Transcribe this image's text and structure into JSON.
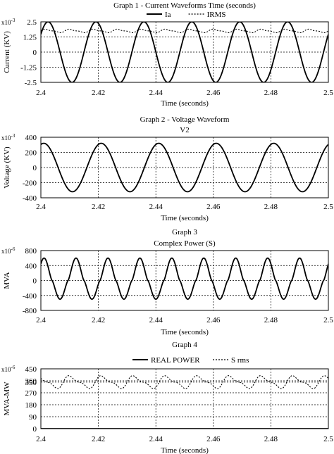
{
  "chart_data": [
    {
      "type": "line",
      "title": "Graph 1 - Current Waveforms Time (seconds)",
      "subtitle": "",
      "xlabel": "Time (seconds)",
      "ylabel": "Current (KV)",
      "multiplier": "x10",
      "multiplier_exp": "-3",
      "xlim": [
        2.4,
        2.5
      ],
      "ylim": [
        -2.5,
        2.5
      ],
      "xticks": [
        "2.4",
        "2.42",
        "2.44",
        "2.46",
        "2.48",
        "2.5"
      ],
      "yticks": [
        "2.5",
        "1.25",
        "0",
        "-1.25",
        "-2.5"
      ],
      "grid": true,
      "legend_position": "top",
      "series": [
        {
          "name": "Ia",
          "style": "solid",
          "wave": {
            "kind": "sine",
            "amplitude": 2.5,
            "offset": 0,
            "freq": 60,
            "phase": 0.1
          }
        },
        {
          "name": "IRMS",
          "style": "dotted",
          "wave": {
            "kind": "ripple",
            "amplitude": 0.12,
            "offset": 1.75,
            "freq": 120,
            "phase": 0
          }
        }
      ]
    },
    {
      "type": "line",
      "title": "Graph 2 - Voltage Waveform",
      "subtitle": "V2",
      "xlabel": "Time (seconds)",
      "ylabel": "Voltage (KV)",
      "multiplier": "x10",
      "multiplier_exp": "-3",
      "xlim": [
        2.4,
        2.5
      ],
      "ylim": [
        -400,
        400
      ],
      "xticks": [
        "2.4",
        "2.42",
        "2.44",
        "2.46",
        "2.48",
        "2.5"
      ],
      "yticks": [
        "400",
        "200",
        "0",
        "-200",
        "-400"
      ],
      "grid": true,
      "legend_position": "none",
      "series": [
        {
          "name": "",
          "style": "solid",
          "wave": {
            "kind": "sine",
            "amplitude": 320,
            "offset": 0,
            "freq": 50,
            "phase": 0.2
          }
        }
      ]
    },
    {
      "type": "line",
      "title": "Graph 3",
      "subtitle": "Complex Power (S)",
      "xlabel": "Time (seconds)",
      "ylabel": "MVA",
      "multiplier": "x10",
      "multiplier_exp": "-6",
      "xlim": [
        2.4,
        2.5
      ],
      "ylim": [
        -800,
        800
      ],
      "xticks": [
        "2.4",
        "2.42",
        "2.44",
        "2.46",
        "2.48",
        "2.5"
      ],
      "yticks": [
        "800",
        "400",
        "0",
        "-400",
        "-800"
      ],
      "grid": true,
      "legend_position": "none",
      "series": [
        {
          "name": "",
          "style": "solid",
          "wave": {
            "kind": "pulse",
            "amplitude": 600,
            "neg_amplitude": 500,
            "offset": 0,
            "freq": 90,
            "phase": 0.15
          }
        }
      ]
    },
    {
      "type": "line",
      "title": "Graph 4",
      "subtitle": "",
      "xlabel": "Time (seconds)",
      "ylabel": "MVA-MW",
      "multiplier": "x10",
      "multiplier_exp": "-6",
      "xlim": [
        2.4,
        2.5
      ],
      "ylim": [
        0,
        450
      ],
      "xticks": [
        "2.4",
        "2.42",
        "2.44",
        "2.46",
        "2.48",
        "2.5"
      ],
      "yticks": [
        "450",
        "360",
        "350",
        "270",
        "180",
        "90",
        "0"
      ],
      "ytick_values": [
        450,
        360,
        350,
        270,
        180,
        90,
        0
      ],
      "grid": true,
      "legend_position": "top",
      "series": [
        {
          "name": "REAL POWER",
          "style": "solid",
          "wave": {
            "kind": "flat",
            "amplitude": 0,
            "offset": 0,
            "freq": 0,
            "phase": 0
          }
        },
        {
          "name": "S rms",
          "style": "dotted",
          "wave": {
            "kind": "ripple",
            "amplitude": 40,
            "offset": 350,
            "freq": 90,
            "phase": 0.3
          }
        }
      ]
    }
  ]
}
